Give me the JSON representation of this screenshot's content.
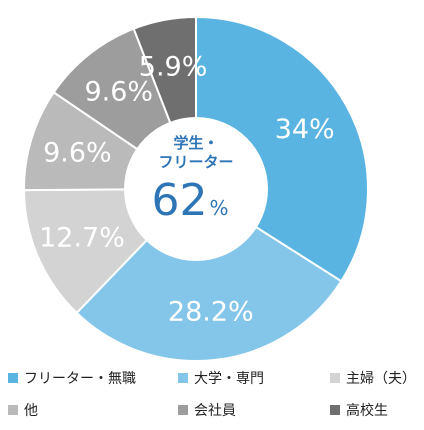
{
  "chart_data": {
    "type": "pie",
    "style": "donut",
    "categories": [
      "フリーター・無職",
      "大学・専門",
      "主婦（夫）",
      "他",
      "会社員",
      "高校生"
    ],
    "values": [
      34,
      28.2,
      12.7,
      9.6,
      9.6,
      5.9
    ],
    "value_labels": [
      "34%",
      "28.2%",
      "12.7%",
      "9.6%",
      "9.6%",
      "5.9%"
    ],
    "colors": [
      "#5ab4e2",
      "#84c6ea",
      "#d3d3d3",
      "#bababa",
      "#9d9d9d",
      "#6f6f6f"
    ],
    "legend_placement": "bottom",
    "center": {
      "title_line1": "学生・",
      "title_line2": "フリーター",
      "value": "62",
      "unit": "%"
    }
  }
}
